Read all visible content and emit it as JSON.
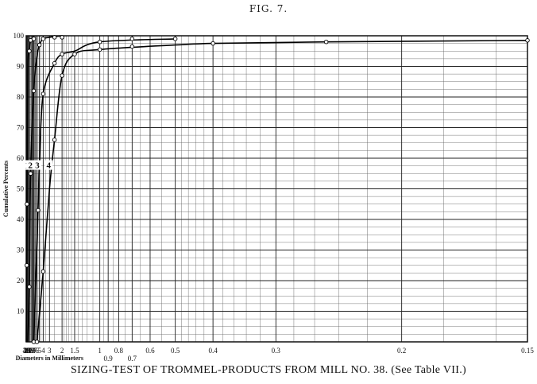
{
  "figure_label": "FIG. 7.",
  "caption": "SIZING-TEST OF TROMMEL-PRODUCTS FROM MILL NO. 38. (See Table VII.)",
  "chart_data": {
    "type": "line",
    "title": "",
    "xlabel": "Diameters in Millimeters",
    "ylabel": "Cumulative Percents",
    "x_scale": "reciprocal",
    "xlim": [
      40,
      0.15
    ],
    "ylim": [
      0,
      100
    ],
    "grid": true,
    "x_ticks": [
      {
        "value": 40,
        "label": "40"
      },
      {
        "value": 35,
        "label": "35"
      },
      {
        "value": 30,
        "label": "30"
      },
      {
        "value": 25,
        "label": "25"
      },
      {
        "value": 20,
        "label": "20"
      },
      {
        "value": 15,
        "label": "15"
      },
      {
        "value": 10,
        "label": "10"
      },
      {
        "value": 9,
        "label": "9"
      },
      {
        "value": 8,
        "label": "8"
      },
      {
        "value": 7,
        "label": "7"
      },
      {
        "value": 6,
        "label": "6"
      },
      {
        "value": 5,
        "label": "5"
      },
      {
        "value": 4,
        "label": "4"
      },
      {
        "value": 3,
        "label": "3"
      },
      {
        "value": 2,
        "label": "2"
      },
      {
        "value": 1.5,
        "label": "1.5"
      },
      {
        "value": 1,
        "label": "1"
      },
      {
        "value": 0.9,
        "label": "0.9"
      },
      {
        "value": 0.8,
        "label": "0.8"
      },
      {
        "value": 0.7,
        "label": "0.7"
      },
      {
        "value": 0.6,
        "label": "0.6"
      },
      {
        "value": 0.5,
        "label": "0.5"
      },
      {
        "value": 0.4,
        "label": "0.4"
      },
      {
        "value": 0.3,
        "label": "0.3"
      },
      {
        "value": 0.2,
        "label": "0.2"
      },
      {
        "value": 0.15,
        "label": "0.15"
      }
    ],
    "y_ticks": [
      10,
      20,
      30,
      40,
      50,
      60,
      70,
      80,
      90,
      100
    ],
    "series": [
      {
        "label": "1",
        "label_point": {
          "x": 25,
          "y": 57
        },
        "points": [
          {
            "x": 40,
            "y": 0
          },
          {
            "x": 31,
            "y": 25
          },
          {
            "x": 28.5,
            "y": 45
          },
          {
            "x": 27,
            "y": 55
          },
          {
            "x": 21,
            "y": 90
          },
          {
            "x": 15,
            "y": 95
          },
          {
            "x": 12,
            "y": 98.5
          },
          {
            "x": 8,
            "y": 99
          }
        ],
        "markers": [
          {
            "x": 31,
            "y": 25
          },
          {
            "x": 28.5,
            "y": 45
          },
          {
            "x": 15,
            "y": 95
          },
          {
            "x": 12,
            "y": 98.5
          },
          {
            "x": 8,
            "y": 99
          }
        ]
      },
      {
        "label": "2",
        "label_point": {
          "x": 12.5,
          "y": 57
        },
        "points": [
          {
            "x": 22,
            "y": 0
          },
          {
            "x": 15,
            "y": 18
          },
          {
            "x": 12,
            "y": 55
          },
          {
            "x": 8,
            "y": 82
          },
          {
            "x": 6,
            "y": 93
          },
          {
            "x": 5,
            "y": 97
          },
          {
            "x": 4,
            "y": 99
          },
          {
            "x": 3,
            "y": 99.5
          },
          {
            "x": 2,
            "y": 100
          }
        ],
        "markers": [
          {
            "x": 15,
            "y": 18
          },
          {
            "x": 12,
            "y": 55
          },
          {
            "x": 8,
            "y": 82
          },
          {
            "x": 5,
            "y": 97
          },
          {
            "x": 4,
            "y": 99
          },
          {
            "x": 2.5,
            "y": 99.5
          },
          {
            "x": 2,
            "y": 99.5
          }
        ]
      },
      {
        "label": "3",
        "label_point": {
          "x": 5.8,
          "y": 57
        },
        "points": [
          {
            "x": 8,
            "y": 0
          },
          {
            "x": 5.5,
            "y": 43
          },
          {
            "x": 5,
            "y": 58
          },
          {
            "x": 4,
            "y": 81
          },
          {
            "x": 2.5,
            "y": 91
          },
          {
            "x": 2,
            "y": 94
          },
          {
            "x": 1.5,
            "y": 95
          },
          {
            "x": 1,
            "y": 98
          },
          {
            "x": 0.5,
            "y": 99
          }
        ],
        "markers": [
          {
            "x": 8,
            "y": 0
          },
          {
            "x": 5.5,
            "y": 43
          },
          {
            "x": 4,
            "y": 81
          },
          {
            "x": 2.5,
            "y": 91
          },
          {
            "x": 2,
            "y": 94
          },
          {
            "x": 1,
            "y": 98
          },
          {
            "x": 0.7,
            "y": 99
          },
          {
            "x": 0.5,
            "y": 99
          }
        ],
        "label_near_end": "0.9"
      },
      {
        "label": "4",
        "label_point": {
          "x": 3.1,
          "y": 57
        },
        "points": [
          {
            "x": 6,
            "y": 0
          },
          {
            "x": 4,
            "y": 23
          },
          {
            "x": 3,
            "y": 50
          },
          {
            "x": 2.5,
            "y": 66
          },
          {
            "x": 2,
            "y": 87
          },
          {
            "x": 1.5,
            "y": 94
          },
          {
            "x": 1,
            "y": 95.5
          },
          {
            "x": 0.5,
            "y": 97
          },
          {
            "x": 0.4,
            "y": 97.5
          },
          {
            "x": 0.25,
            "y": 98
          },
          {
            "x": 0.15,
            "y": 98.5
          }
        ],
        "markers": [
          {
            "x": 6,
            "y": 0
          },
          {
            "x": 4,
            "y": 23
          },
          {
            "x": 2.5,
            "y": 66
          },
          {
            "x": 2,
            "y": 87
          },
          {
            "x": 1.5,
            "y": 94
          },
          {
            "x": 1,
            "y": 95.5
          },
          {
            "x": 0.7,
            "y": 96.5
          },
          {
            "x": 0.4,
            "y": 97.5
          },
          {
            "x": 0.25,
            "y": 98
          },
          {
            "x": 0.15,
            "y": 98.5
          }
        ],
        "label_near_end": "0.7"
      }
    ],
    "bottom_extra_labels": [
      {
        "value": 0.9,
        "label": "0.9"
      },
      {
        "value": 0.7,
        "label": "0.7"
      }
    ]
  }
}
